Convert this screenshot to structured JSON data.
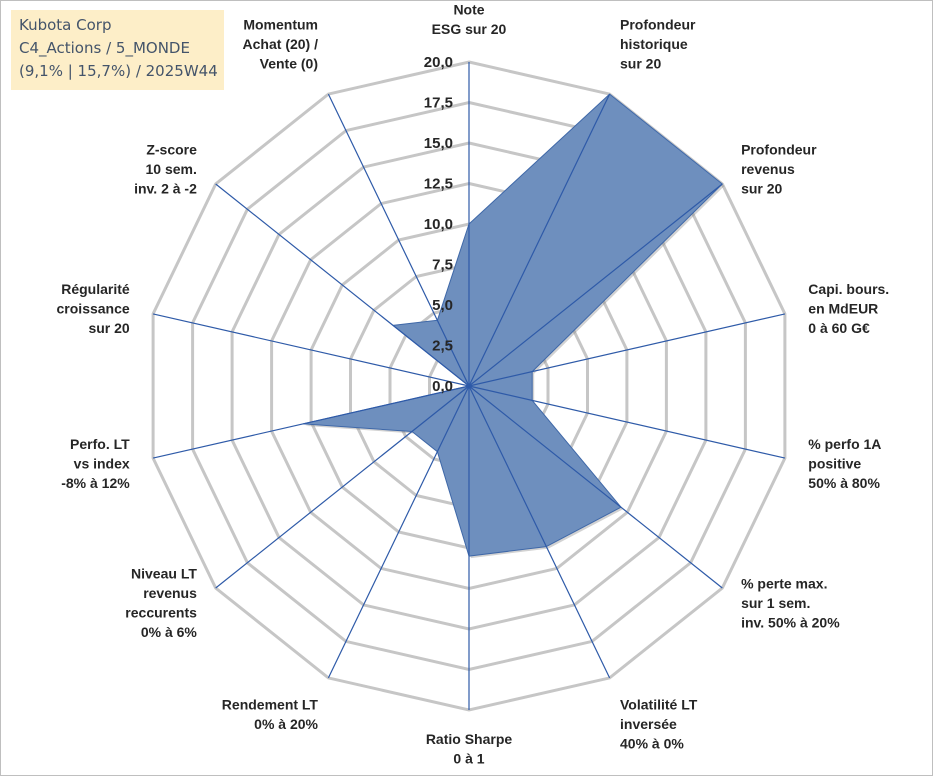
{
  "info": {
    "line1": "Kubota Corp",
    "line2": "C4_Actions / 5_MONDE",
    "line3": "(9,1% | 15,7%) / 2025W44"
  },
  "chart_data": {
    "type": "radar",
    "rmax": 20,
    "tick_labels": [
      "0,0",
      "2,5",
      "5,0",
      "7,5",
      "10,0",
      "12,5",
      "15,0",
      "17,5",
      "20,0"
    ],
    "axes": [
      [
        "Note",
        "ESG sur 20"
      ],
      [
        "Profondeur",
        "historique",
        "sur 20"
      ],
      [
        "Profondeur",
        "revenus",
        "sur 20"
      ],
      [
        "Capi. bours.",
        "en MdEUR",
        "0 à 60 G€"
      ],
      [
        "% perfo 1A",
        "positive",
        "50% à 80%"
      ],
      [
        "% perte max.",
        "sur 1 sem.",
        "inv. 50% à 20%"
      ],
      [
        "Volatilité LT",
        "inversée",
        "40% à 0%"
      ],
      [
        "Ratio Sharpe",
        "0 à 1"
      ],
      [
        "Rendement LT",
        "0% à 20%"
      ],
      [
        "Niveau LT",
        "revenus",
        "reccurents",
        "0% à 6%"
      ],
      [
        "Perfo. LT",
        "vs index",
        "-8% à 12%"
      ],
      [
        "Régularité",
        "croissance",
        "sur 20"
      ],
      [
        "Z-score",
        "10 sem.",
        "inv. 2 à -2"
      ],
      [
        "Momentum",
        "Achat (20) /",
        "Vente (0)"
      ]
    ],
    "series": [
      {
        "values": [
          10.0,
          20.0,
          20.0,
          4.0,
          4.0,
          12.0,
          11.0,
          10.5,
          4.5,
          4.5,
          10.5,
          0.0,
          6.0,
          4.5
        ]
      }
    ],
    "rings": 8,
    "color": "#6e8fbe",
    "stroke": "#3f68a8",
    "grid_color": "#c6c6c6",
    "spoke_color": "#2e5aa8"
  }
}
